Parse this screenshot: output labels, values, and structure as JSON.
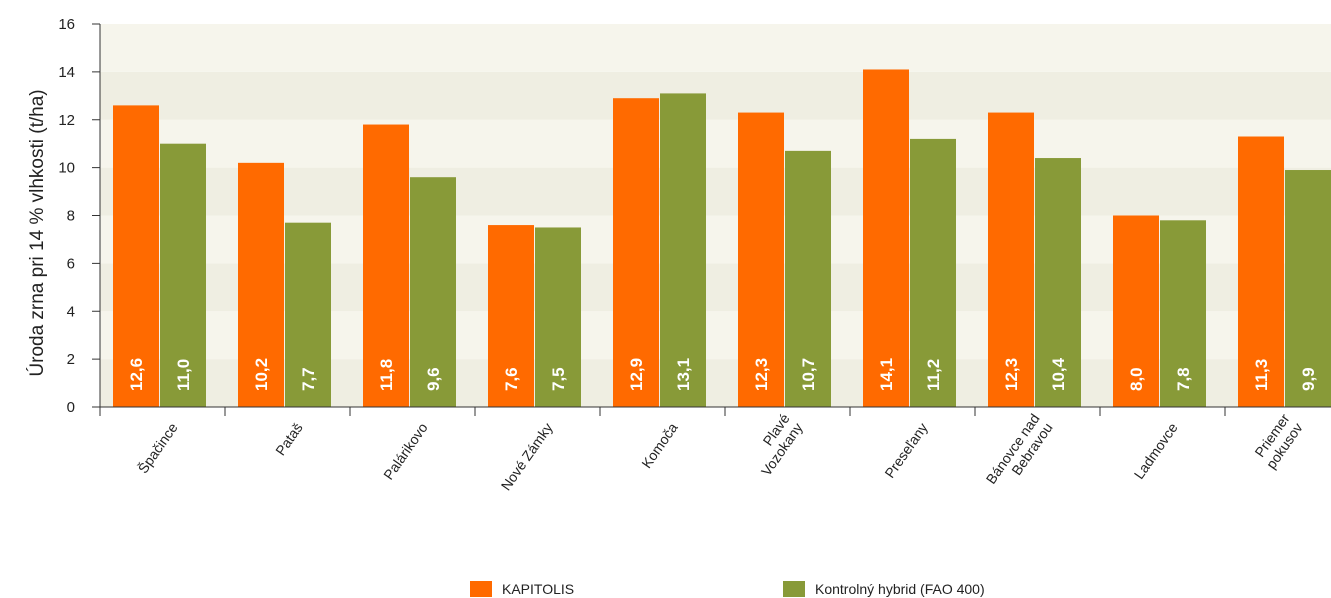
{
  "chart_data": {
    "type": "bar",
    "title": "",
    "xlabel": "",
    "ylabel": "Úroda zrna pri 14 % vlhkosti (t/ha)",
    "ylim": [
      0,
      16
    ],
    "yticks": [
      "0",
      "2",
      "4",
      "6",
      "8",
      "10",
      "12",
      "14",
      "16"
    ],
    "grid": "horizontal bands",
    "legend_position": "bottom",
    "categories": [
      [
        "Špačince"
      ],
      [
        "Pataš"
      ],
      [
        "Palárikovo"
      ],
      [
        "Nové Zámky"
      ],
      [
        "Komoča"
      ],
      [
        "Plavé",
        "Vozokany"
      ],
      [
        "Preseľany"
      ],
      [
        "Bánovce nad",
        "Bebravou"
      ],
      [
        "Ladmovce"
      ],
      [
        "Priemer",
        "pokusov"
      ]
    ],
    "series": [
      {
        "name": "KAPITOLIS",
        "color": "#ff6a00",
        "values": [
          12.6,
          10.2,
          11.8,
          7.6,
          12.9,
          12.3,
          14.1,
          12.3,
          8.0,
          11.3
        ],
        "labels": [
          "12,6",
          "10,2",
          "11,8",
          "7,6",
          "12,9",
          "12,3",
          "14,1",
          "12,3",
          "8,0",
          "11,3"
        ]
      },
      {
        "name": "Kontrolný hybrid (FAO 400)",
        "color": "#889a38",
        "values": [
          11.0,
          7.7,
          9.6,
          7.5,
          13.1,
          10.7,
          11.2,
          10.4,
          7.8,
          9.9
        ],
        "labels": [
          "11,0",
          "7,7",
          "9,6",
          "7,5",
          "13,1",
          "10,7",
          "11,2",
          "10,4",
          "7,8",
          "9,9"
        ]
      }
    ],
    "band_colors": [
      "#efeee2",
      "#f6f5ec"
    ],
    "axis_color": "#333333"
  }
}
